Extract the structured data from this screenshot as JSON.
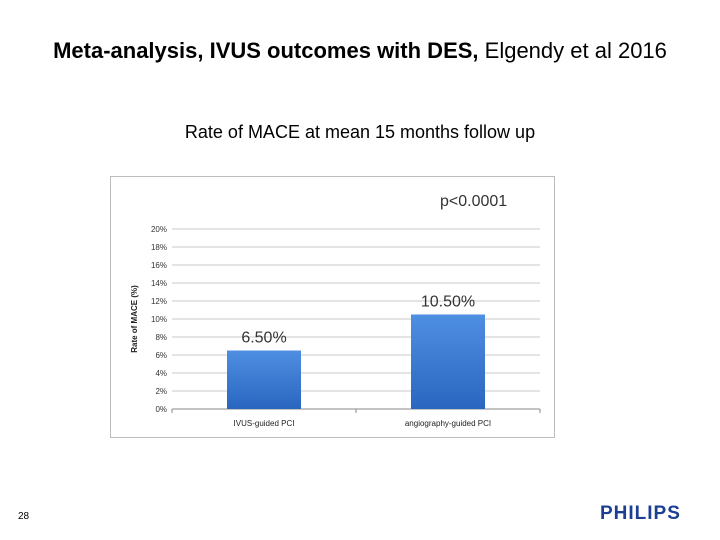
{
  "slide": {
    "title_bold": "Meta-analysis, IVUS outcomes with DES,",
    "title_rest": " Elgendy et al 2016",
    "page_number": "28",
    "brand": "PHILIPS"
  },
  "chart_data": {
    "type": "bar",
    "title": "Rate of MACE at mean 15 months follow up",
    "categories": [
      "IVUS-guided PCI",
      "angiography-guided PCI"
    ],
    "values": [
      6.5,
      10.5
    ],
    "data_labels": [
      "6.50%",
      "10.50%"
    ],
    "ylabel": "Rate of MACE (%)",
    "xlabel": "",
    "ylim": [
      0,
      20
    ],
    "y_ticks": [
      0,
      2,
      4,
      6,
      8,
      10,
      12,
      14,
      16,
      18,
      20
    ],
    "y_tick_labels": [
      "0%",
      "2%",
      "4%",
      "6%",
      "8%",
      "10%",
      "12%",
      "14%",
      "16%",
      "18%",
      "20%"
    ],
    "annotation": "p<0.0001",
    "grid": true,
    "bar_color": "#3d7fd6"
  }
}
